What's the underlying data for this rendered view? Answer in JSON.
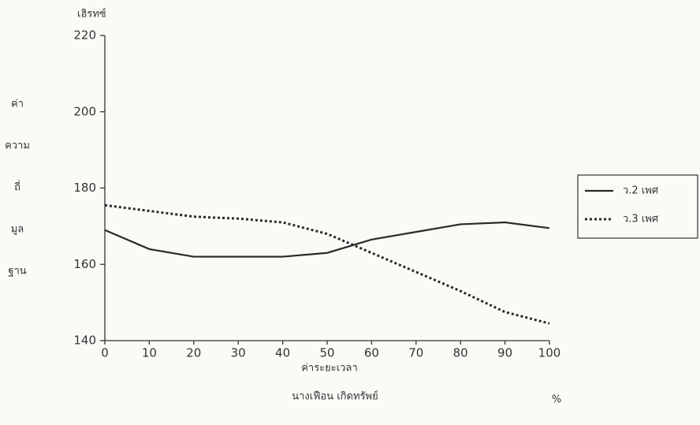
{
  "chart_data": {
    "type": "line",
    "unit_label": "เฮิรทซ์",
    "y_label_lines": [
      "ค่า",
      "ความ",
      "ถี่",
      "มูล",
      "ฐาน"
    ],
    "x_label": "ค่าระยะเวลา",
    "x_unit": "%",
    "annotation": "นางเฟือน เกิดทรัพย์",
    "x": [
      0,
      10,
      20,
      30,
      40,
      50,
      60,
      70,
      80,
      90,
      100
    ],
    "series": [
      {
        "name": "ว.2 เพศ",
        "color": "#2a2a2a",
        "style": "solid",
        "values": [
          169,
          164,
          162,
          162,
          162,
          163,
          166.5,
          168.5,
          170.5,
          171,
          169.5
        ]
      },
      {
        "name": "ว.3 เพศ",
        "color": "#2a2a2a",
        "style": "dotted",
        "values": [
          175.5,
          174,
          172.5,
          172,
          171,
          168,
          163,
          158,
          153,
          147.5,
          144.5
        ]
      }
    ],
    "xlim": [
      0,
      100
    ],
    "xticks": [
      0,
      10,
      20,
      30,
      40,
      50,
      60,
      70,
      80,
      90,
      100
    ],
    "ylim": [
      140,
      220
    ],
    "yticks": [
      140,
      160,
      180,
      200,
      220
    ],
    "grid": false,
    "legend": "right"
  }
}
